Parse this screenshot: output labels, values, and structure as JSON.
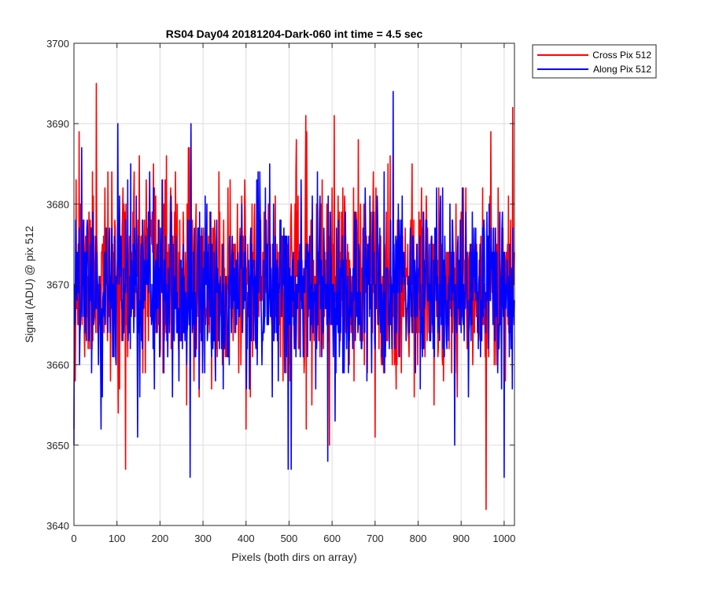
{
  "chart_data": {
    "type": "line",
    "title": "RS04 Day04 20181204-Dark-060 int time = 4.5 sec",
    "xlabel": "Pixels (both dirs on array)",
    "ylabel": "Signal (ADU) @ pix 512",
    "xlim": [
      0,
      1024
    ],
    "ylim": [
      3640,
      3700
    ],
    "xticks": [
      0,
      100,
      200,
      300,
      400,
      500,
      600,
      700,
      800,
      900,
      1000
    ],
    "yticks": [
      3640,
      3650,
      3660,
      3670,
      3680,
      3690,
      3700
    ],
    "grid": true,
    "legend_position": "outside-top-right",
    "series": [
      {
        "name": "Cross Pix 512",
        "color": "#ff0000",
        "noise": {
          "n": 1024,
          "mean": 3670.5,
          "sd": 5.8,
          "min": 3642,
          "max": 3695,
          "seed": 11
        },
        "anchors": [
          [
            0,
            3652
          ],
          [
            5,
            3683
          ],
          [
            12,
            3689
          ],
          [
            52,
            3695
          ],
          [
            85,
            3658
          ],
          [
            120,
            3647
          ],
          [
            140,
            3684
          ],
          [
            215,
            3686
          ],
          [
            272,
            3689
          ],
          [
            400,
            3652
          ],
          [
            500,
            3660
          ],
          [
            540,
            3652
          ],
          [
            553,
            3655
          ],
          [
            605,
            3691
          ],
          [
            700,
            3651
          ],
          [
            735,
            3686
          ],
          [
            958,
            3642
          ],
          [
            1020,
            3692
          ],
          [
            1024,
            3674
          ]
        ]
      },
      {
        "name": "Along Pix 512",
        "color": "#0000ff",
        "noise": {
          "n": 1024,
          "mean": 3669.5,
          "sd": 5.4,
          "min": 3646,
          "max": 3694,
          "seed": 29
        },
        "anchors": [
          [
            0,
            3650
          ],
          [
            5,
            3674
          ],
          [
            18,
            3687
          ],
          [
            102,
            3690
          ],
          [
            148,
            3651
          ],
          [
            272,
            3690
          ],
          [
            270,
            3646
          ],
          [
            498,
            3647
          ],
          [
            505,
            3647
          ],
          [
            590,
            3648
          ],
          [
            742,
            3694
          ],
          [
            885,
            3650
          ],
          [
            1000,
            3646
          ],
          [
            1024,
            3668
          ]
        ]
      }
    ]
  }
}
